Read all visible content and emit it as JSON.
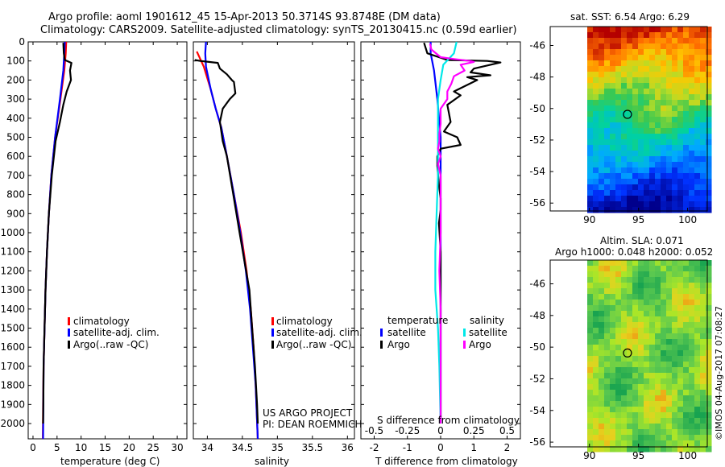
{
  "header": {
    "title_line1": "Argo profile: aoml 1901612_45 15-Apr-2013 50.3714S 93.8748E (DM data)",
    "title_line2": "Climatology: CARS2009. Satellite-adjusted climatology: synTS_20130415.nc (0.59d earlier)"
  },
  "colors": {
    "climatology": "#ff0000",
    "satellite": "#0000ff",
    "argo": "#000000",
    "salinity_satellite": "#00e8e8",
    "salinity_argo": "#ff00ff"
  },
  "legends": {
    "temperature": [
      "climatology",
      "satellite-adj. clim.",
      "Argo(..raw -QC)"
    ],
    "salinity": [
      "climatology",
      "satellite-adj. clim.",
      "Argo(..raw -QC)"
    ],
    "difference": {
      "col1_title": "temperature",
      "col2_title": "salinity",
      "items_left": [
        "satellite",
        "Argo"
      ],
      "items_right": [
        "satellite",
        "Argo"
      ]
    }
  },
  "annotations": {
    "project": "US ARGO PROJECT",
    "pi": "PI: DEAN ROEMMICH",
    "credit": "©IMOS 04-Aug-2017 07:08:27"
  },
  "maps": {
    "sst": {
      "title": "sat. SST: 6.54 Argo: 6.29"
    },
    "sla": {
      "title_line1": "Altim. SLA: 0.071",
      "title_line2": "Argo h1000: 0.048 h2000: 0.052"
    }
  },
  "chart_data": [
    {
      "type": "line",
      "id": "temperature",
      "xlabel": "temperature (deg C)",
      "ylabel": "",
      "xlim": [
        -1,
        32
      ],
      "ylim": [
        2080,
        0
      ],
      "xticks": [
        0,
        5,
        10,
        15,
        20,
        25,
        30
      ],
      "yticks": [
        0,
        100,
        200,
        300,
        400,
        500,
        600,
        700,
        800,
        900,
        1000,
        1100,
        1200,
        1300,
        1400,
        1500,
        1600,
        1700,
        1800,
        1900,
        2000
      ],
      "series": [
        {
          "name": "climatology",
          "color": "#ff0000",
          "points": [
            [
              6.9,
              0
            ],
            [
              6.8,
              60
            ],
            [
              6.5,
              150
            ],
            [
              5.7,
              300
            ],
            [
              4.6,
              500
            ],
            [
              3.8,
              700
            ],
            [
              3.3,
              900
            ],
            [
              2.9,
              1100
            ],
            [
              2.6,
              1300
            ],
            [
              2.4,
              1500
            ],
            [
              2.2,
              1700
            ],
            [
              2.1,
              1900
            ],
            [
              2.05,
              2080
            ]
          ]
        },
        {
          "name": "satellite-adj. clim.",
          "color": "#0000ff",
          "points": [
            [
              6.6,
              0
            ],
            [
              6.5,
              60
            ],
            [
              6.3,
              150
            ],
            [
              5.6,
              300
            ],
            [
              4.6,
              500
            ],
            [
              3.8,
              700
            ],
            [
              3.3,
              900
            ],
            [
              2.9,
              1100
            ],
            [
              2.6,
              1300
            ],
            [
              2.4,
              1500
            ],
            [
              2.2,
              1700
            ],
            [
              2.15,
              1900
            ],
            [
              2.1,
              2080
            ]
          ]
        },
        {
          "name": "Argo(..raw -QC)",
          "color": "#000000",
          "points": [
            [
              6.3,
              5
            ],
            [
              6.4,
              60
            ],
            [
              6.6,
              95
            ],
            [
              8.0,
              110
            ],
            [
              7.7,
              150
            ],
            [
              7.9,
              200
            ],
            [
              7.0,
              260
            ],
            [
              6.3,
              330
            ],
            [
              5.6,
              420
            ],
            [
              4.7,
              520
            ],
            [
              3.9,
              700
            ],
            [
              3.3,
              900
            ],
            [
              2.9,
              1100
            ],
            [
              2.6,
              1300
            ],
            [
              2.4,
              1500
            ],
            [
              2.2,
              1700
            ],
            [
              2.15,
              1900
            ],
            [
              2.1,
              2000
            ]
          ]
        }
      ]
    },
    {
      "type": "line",
      "id": "salinity",
      "xlabel": "salinity",
      "ylabel": "",
      "xlim": [
        33.8,
        36.1
      ],
      "ylim": [
        2080,
        0
      ],
      "xticks": [
        34,
        34.5,
        35,
        35.5,
        36
      ],
      "series": [
        {
          "name": "climatology",
          "color": "#ff0000",
          "points": [
            [
              33.85,
              50
            ],
            [
              33.95,
              130
            ],
            [
              34.05,
              250
            ],
            [
              34.12,
              350
            ],
            [
              34.2,
              450
            ],
            [
              34.28,
              600
            ],
            [
              34.38,
              800
            ],
            [
              34.48,
              1000
            ],
            [
              34.56,
              1200
            ],
            [
              34.62,
              1400
            ],
            [
              34.66,
              1600
            ],
            [
              34.69,
              1800
            ],
            [
              34.72,
              2080
            ]
          ]
        },
        {
          "name": "satellite-adj. clim.",
          "color": "#0000ff",
          "points": [
            [
              33.98,
              0
            ],
            [
              33.97,
              60
            ],
            [
              33.98,
              130
            ],
            [
              34.05,
              250
            ],
            [
              34.12,
              350
            ],
            [
              34.2,
              450
            ],
            [
              34.28,
              600
            ],
            [
              34.38,
              800
            ],
            [
              34.47,
              1000
            ],
            [
              34.55,
              1200
            ],
            [
              34.61,
              1400
            ],
            [
              34.65,
              1600
            ],
            [
              34.69,
              1800
            ],
            [
              34.72,
              2080
            ]
          ]
        },
        {
          "name": "Argo(..raw -QC)",
          "color": "#000000",
          "points": [
            [
              33.82,
              95
            ],
            [
              33.9,
              100
            ],
            [
              34.15,
              110
            ],
            [
              34.18,
              140
            ],
            [
              34.28,
              170
            ],
            [
              34.35,
              200
            ],
            [
              34.38,
              210
            ],
            [
              34.4,
              270
            ],
            [
              34.32,
              300
            ],
            [
              34.22,
              350
            ],
            [
              34.18,
              420
            ],
            [
              34.22,
              520
            ],
            [
              34.28,
              600
            ],
            [
              34.37,
              800
            ],
            [
              34.46,
              1000
            ],
            [
              34.53,
              1150
            ],
            [
              34.6,
              1300
            ],
            [
              34.64,
              1500
            ],
            [
              34.68,
              1700
            ],
            [
              34.71,
              1900
            ],
            [
              34.72,
              2000
            ]
          ]
        }
      ]
    },
    {
      "type": "line",
      "id": "difference",
      "xlabel": "T difference from climatology",
      "xlabel_top": "S difference from climatology",
      "xlim": [
        -2.4,
        2.4
      ],
      "ylim": [
        2080,
        0
      ],
      "xticks": [
        -2,
        -1,
        0,
        1,
        2
      ],
      "xticks_top": [
        -0.5,
        -0.25,
        0,
        0.25,
        0.5
      ],
      "xticks_top_labels": [
        "-0.5",
        "-0.25",
        "0",
        "0.25",
        "0.5"
      ],
      "series": [
        {
          "name": "temperature satellite",
          "color": "#0000ff",
          "points": [
            [
              -0.3,
              0
            ],
            [
              -0.3,
              60
            ],
            [
              -0.2,
              150
            ],
            [
              -0.1,
              300
            ],
            [
              0,
              500
            ],
            [
              0,
              800
            ],
            [
              0,
              1200
            ],
            [
              0,
              1600
            ],
            [
              0,
              2000
            ]
          ]
        },
        {
          "name": "temperature Argo",
          "color": "#000000",
          "points": [
            [
              -0.5,
              5
            ],
            [
              -0.4,
              60
            ],
            [
              0.2,
              95
            ],
            [
              1.4,
              100
            ],
            [
              1.8,
              108
            ],
            [
              1.0,
              140
            ],
            [
              0.9,
              160
            ],
            [
              1.5,
              175
            ],
            [
              0.8,
              185
            ],
            [
              1.1,
              200
            ],
            [
              0.4,
              260
            ],
            [
              0.6,
              280
            ],
            [
              0.2,
              330
            ],
            [
              0.3,
              420
            ],
            [
              0.1,
              470
            ],
            [
              0.5,
              500
            ],
            [
              0.6,
              540
            ],
            [
              0.0,
              560
            ],
            [
              -0.1,
              600
            ],
            [
              -0.1,
              650
            ],
            [
              -0.05,
              750
            ],
            [
              0.0,
              820
            ],
            [
              0.0,
              880
            ],
            [
              -0.05,
              950
            ],
            [
              0.0,
              1100
            ],
            [
              0.0,
              1300
            ],
            [
              0.0,
              1500
            ],
            [
              0.0,
              1700
            ],
            [
              0.0,
              2000
            ]
          ]
        },
        {
          "name": "salinity satellite",
          "color": "#00e8e8",
          "points": [
            [
              0.12,
              0
            ],
            [
              0.1,
              60
            ],
            [
              0.02,
              120
            ],
            [
              0.0,
              200
            ],
            [
              -0.02,
              300
            ],
            [
              -0.02,
              500
            ],
            [
              -0.02,
              700
            ],
            [
              -0.03,
              900
            ],
            [
              -0.04,
              1100
            ],
            [
              -0.04,
              1300
            ],
            [
              -0.02,
              1500
            ],
            [
              -0.01,
              1700
            ],
            [
              0.0,
              2000
            ]
          ]
        },
        {
          "name": "salinity Argo",
          "color": "#ff00ff",
          "points": [
            [
              -0.08,
              10
            ],
            [
              -0.07,
              40
            ],
            [
              0.0,
              80
            ],
            [
              0.1,
              90
            ],
            [
              0.22,
              100
            ],
            [
              0.25,
              105
            ],
            [
              0.15,
              120
            ],
            [
              0.18,
              150
            ],
            [
              0.1,
              180
            ],
            [
              0.08,
              220
            ],
            [
              0.05,
              260
            ],
            [
              0.05,
              300
            ],
            [
              0.0,
              350
            ],
            [
              0.0,
              430
            ],
            [
              -0.01,
              480
            ],
            [
              -0.01,
              520
            ],
            [
              -0.02,
              560
            ],
            [
              0.0,
              600
            ],
            [
              -0.02,
              640
            ],
            [
              0.0,
              700
            ],
            [
              0.0,
              800
            ],
            [
              0.0,
              1000
            ],
            [
              -0.01,
              1200
            ],
            [
              0.0,
              1400
            ],
            [
              0.0,
              1600
            ],
            [
              0.0,
              1800
            ],
            [
              0.0,
              2000
            ]
          ]
        }
      ]
    },
    {
      "type": "heatmap",
      "id": "sst_map",
      "title": "sat. SST: 6.54 Argo: 6.29",
      "xlim": [
        86,
        102
      ],
      "ylim": [
        -56.5,
        -44.8
      ],
      "xticks": [
        90,
        95,
        100
      ],
      "yticks": [
        -46,
        -48,
        -50,
        -52,
        -54,
        -56
      ],
      "argo_position": [
        93.87,
        -50.37
      ]
    },
    {
      "type": "heatmap",
      "id": "sla_map",
      "title": "Altim. SLA: 0.071",
      "subtitle": "Argo h1000: 0.048 h2000: 0.052",
      "xlim": [
        86,
        102
      ],
      "ylim": [
        -56.3,
        -44.5
      ],
      "xticks": [
        90,
        95,
        100
      ],
      "yticks": [
        -46,
        -48,
        -50,
        -52,
        -54,
        -56
      ],
      "argo_position": [
        93.87,
        -50.37
      ]
    }
  ]
}
